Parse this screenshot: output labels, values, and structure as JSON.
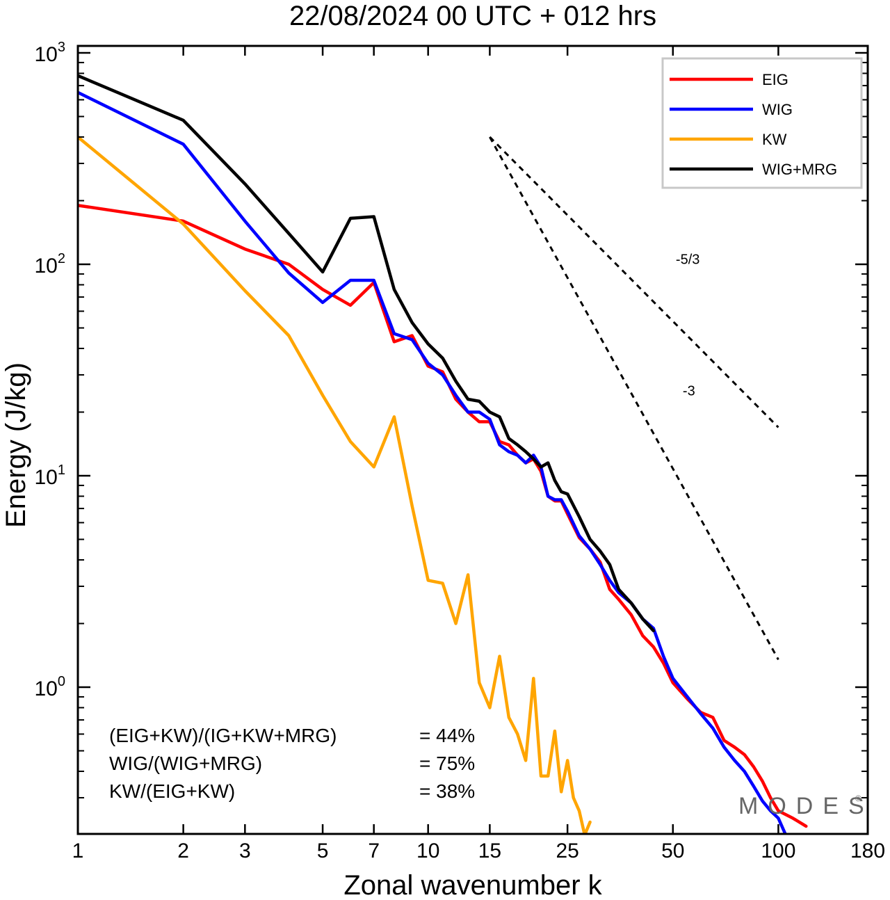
{
  "chart_data": {
    "type": "line",
    "title": "22/08/2024  00 UTC  + 012 hrs",
    "xlabel": "Zonal wavenumber k",
    "ylabel": "Energy (J/kg)",
    "xscale": "log",
    "yscale": "log",
    "xlim": [
      1,
      180
    ],
    "ylim": [
      0.2,
      1200
    ],
    "x_ticks": [
      1,
      2,
      3,
      5,
      7,
      10,
      15,
      25,
      50,
      100,
      180
    ],
    "y_ticks": [
      {
        "value": 1000,
        "base": "10",
        "exp": "3"
      },
      {
        "value": 100,
        "base": "10",
        "exp": "2"
      },
      {
        "value": 10,
        "base": "10",
        "exp": "1"
      },
      {
        "value": 1,
        "base": "10",
        "exp": "0"
      }
    ],
    "legend_position": "top-right",
    "series": [
      {
        "name": "EIG",
        "color": "#ff0000",
        "x": [
          1,
          2,
          3,
          4,
          5,
          6,
          7,
          8,
          9,
          10,
          11,
          12,
          13,
          14,
          15,
          16,
          17,
          18,
          19,
          20,
          21,
          22,
          23,
          24,
          25,
          27,
          29,
          31,
          33,
          35,
          38,
          41,
          44,
          47,
          50,
          55,
          60,
          65,
          70,
          75,
          80,
          85,
          90,
          95,
          100,
          110,
          120
        ],
        "y": [
          190,
          160,
          118,
          100,
          76,
          64,
          82,
          43,
          46,
          33,
          31,
          23,
          20,
          18,
          18,
          14.5,
          14,
          12.5,
          11.5,
          12,
          10.5,
          8,
          7.6,
          7.6,
          6.6,
          5.1,
          4.5,
          3.9,
          2.9,
          2.6,
          2.2,
          1.75,
          1.55,
          1.3,
          1.05,
          0.88,
          0.76,
          0.72,
          0.56,
          0.52,
          0.48,
          0.42,
          0.36,
          0.3,
          0.26,
          0.24,
          0.22
        ]
      },
      {
        "name": "WIG",
        "color": "#0000ff",
        "x": [
          1,
          2,
          3,
          4,
          5,
          6,
          7,
          8,
          9,
          10,
          11,
          12,
          13,
          14,
          15,
          16,
          17,
          18,
          19,
          20,
          21,
          22,
          23,
          24,
          25,
          27,
          29,
          31,
          33,
          35,
          38,
          41,
          44,
          47,
          50,
          55,
          60,
          65,
          70,
          75,
          80,
          85,
          90,
          95,
          100,
          105
        ],
        "y": [
          650,
          370,
          160,
          91,
          66,
          84,
          84,
          47,
          44,
          34,
          30,
          24,
          20,
          20,
          18.5,
          14,
          13,
          12.5,
          11.5,
          12.5,
          11,
          8,
          7.7,
          7.7,
          6.8,
          5.2,
          4.5,
          3.8,
          3.2,
          2.8,
          2.5,
          2.1,
          1.9,
          1.4,
          1.1,
          0.9,
          0.75,
          0.64,
          0.52,
          0.45,
          0.4,
          0.34,
          0.29,
          0.26,
          0.24,
          0.2
        ]
      },
      {
        "name": "KW",
        "color": "#ffa500",
        "x": [
          1,
          2,
          3,
          4,
          5,
          6,
          7,
          8,
          9,
          10,
          11,
          12,
          13,
          14,
          15,
          16,
          17,
          18,
          19,
          20,
          21,
          22,
          23,
          24,
          25,
          26,
          27,
          28,
          29
        ],
        "y": [
          400,
          155,
          75,
          46,
          24,
          14.5,
          11,
          19,
          7.2,
          3.2,
          3.1,
          2.0,
          3.4,
          1.05,
          0.8,
          1.4,
          0.72,
          0.6,
          0.45,
          1.1,
          0.38,
          0.38,
          0.62,
          0.32,
          0.45,
          0.3,
          0.26,
          0.2,
          0.23
        ]
      },
      {
        "name": "WIG+MRG",
        "color": "#000000",
        "x": [
          1,
          2,
          3,
          4,
          5,
          6,
          7,
          8,
          9,
          10,
          11,
          12,
          13,
          14,
          15,
          16,
          17,
          18,
          19,
          20,
          21,
          22,
          23,
          24,
          25,
          27,
          29,
          31,
          33,
          35,
          38,
          41,
          44
        ],
        "y": [
          780,
          480,
          240,
          140,
          92,
          165,
          168,
          76,
          53,
          42,
          36,
          28,
          23,
          22.5,
          20,
          19,
          15,
          14,
          13,
          12,
          11,
          11.5,
          9.5,
          8.4,
          8.2,
          6.4,
          5,
          4.4,
          3.8,
          2.9,
          2.5,
          2.1,
          1.85
        ]
      }
    ],
    "reference_lines": [
      {
        "label": "-5/3",
        "slope": -1.6667,
        "x": [
          15,
          100
        ],
        "y0": 400
      },
      {
        "label": "-3",
        "slope": -3,
        "x": [
          15,
          100
        ],
        "y0": 400
      }
    ],
    "annotations": [
      {
        "label": "(EIG+KW)/(IG+KW+MRG)",
        "value": "= 44%"
      },
      {
        "label": "WIG/(WIG+MRG)",
        "value": "= 75%"
      },
      {
        "label": "KW/(EIG+KW)",
        "value": "= 38%"
      }
    ],
    "grid": false
  },
  "brand": {
    "text": "MODES",
    "mark": "©"
  }
}
